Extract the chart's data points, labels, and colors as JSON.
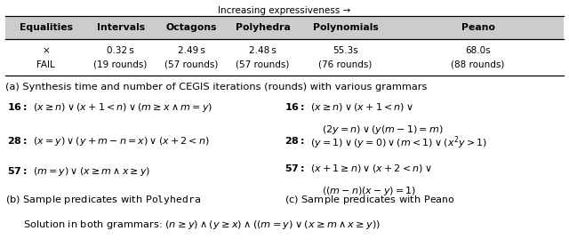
{
  "title_above_table": "Increasing expressiveness →",
  "table_headers": [
    "Equalities",
    "Intervals",
    "Octagons",
    "Polyhedra",
    "Polynomials",
    "Peano"
  ],
  "table_row_line1": [
    "×",
    "0.32 s",
    "2.49 s",
    "2.48 s",
    "55.3s",
    "68.0s"
  ],
  "table_row_line2": [
    "FAIL",
    "(19 rounds)",
    "(57 rounds)",
    "(57 rounds)",
    "(76 rounds)",
    "(88 rounds)"
  ],
  "caption_a": "(a) Synthesis time and number of CEGIS iterations (rounds) with various grammars",
  "caption_b": "(b) Sample predicates with \\textbf{Polyhedra}",
  "caption_c": "(c) Sample predicates with \\textbf{Peano}",
  "bg_color": "#ffffff",
  "text_color": "#000000",
  "figsize": [
    6.4,
    2.78
  ],
  "dpi": 100
}
